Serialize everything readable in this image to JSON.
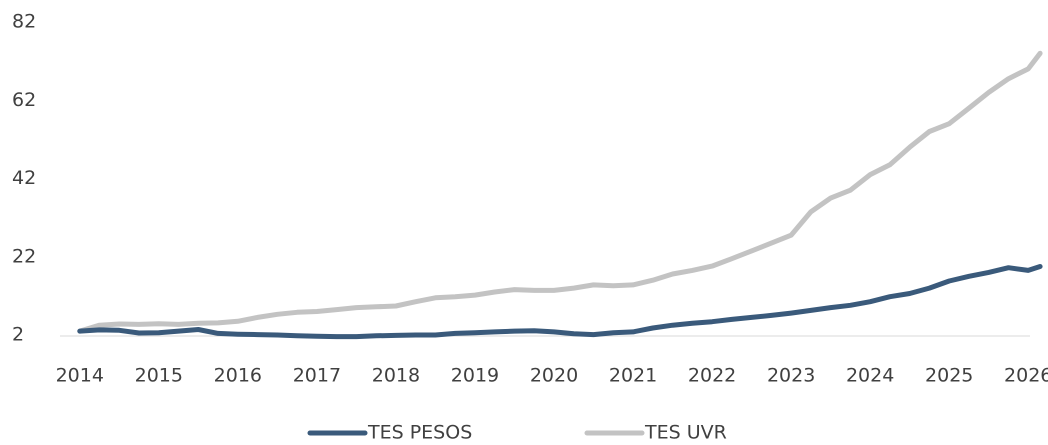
{
  "chart_data": {
    "type": "line",
    "x": [
      2014,
      2014.25,
      2014.5,
      2014.75,
      2015,
      2015.25,
      2015.5,
      2015.75,
      2016,
      2016.25,
      2016.5,
      2016.75,
      2017,
      2017.25,
      2017.5,
      2017.75,
      2018,
      2018.25,
      2018.5,
      2018.75,
      2019,
      2019.25,
      2019.5,
      2019.75,
      2020,
      2020.25,
      2020.5,
      2020.75,
      2021,
      2021.25,
      2021.5,
      2021.75,
      2022,
      2022.25,
      2022.5,
      2022.75,
      2023,
      2023.25,
      2023.5,
      2023.75,
      2024,
      2024.25,
      2024.5,
      2024.75,
      2025,
      2025.25,
      2025.5,
      2025.75,
      2026,
      2026.15
    ],
    "series": [
      {
        "name": "TES PESOS",
        "color": "#3a5a7b",
        "values": [
          3.0,
          3.3,
          3.2,
          2.5,
          2.6,
          3.0,
          3.4,
          2.4,
          2.2,
          2.1,
          2.0,
          1.8,
          1.7,
          1.6,
          1.6,
          1.8,
          1.9,
          2.0,
          2.0,
          2.4,
          2.6,
          2.8,
          3.0,
          3.1,
          2.8,
          2.3,
          2.1,
          2.6,
          2.8,
          3.8,
          4.5,
          5.0,
          5.4,
          6.0,
          6.5,
          7.0,
          7.6,
          8.3,
          9.0,
          9.6,
          10.5,
          11.8,
          12.6,
          14.0,
          15.8,
          17.0,
          18.0,
          19.2,
          18.5,
          19.5
        ]
      },
      {
        "name": "TES UVR",
        "color": "#c3c3c3",
        "values": [
          3.0,
          4.5,
          4.8,
          4.7,
          4.9,
          4.7,
          5.0,
          5.1,
          5.5,
          6.5,
          7.3,
          7.8,
          8.0,
          8.5,
          9.0,
          9.2,
          9.4,
          10.5,
          11.5,
          11.8,
          12.2,
          13.0,
          13.6,
          13.4,
          13.4,
          14.0,
          14.8,
          14.6,
          14.8,
          16.0,
          17.6,
          18.5,
          19.6,
          21.5,
          23.5,
          25.5,
          27.5,
          33.5,
          37.0,
          39.0,
          43.0,
          45.5,
          50.0,
          54.0,
          56.0,
          60.0,
          64.0,
          67.5,
          70.0,
          74.0
        ]
      }
    ],
    "xlim": [
      2013.75,
      2026.25
    ],
    "xticks": [
      2014,
      2015,
      2016,
      2017,
      2018,
      2019,
      2020,
      2021,
      2022,
      2023,
      2024,
      2025,
      2026
    ],
    "ylim": [
      2,
      82
    ],
    "yticks": [
      2,
      22,
      42,
      62,
      82
    ],
    "legend": "bottom"
  }
}
